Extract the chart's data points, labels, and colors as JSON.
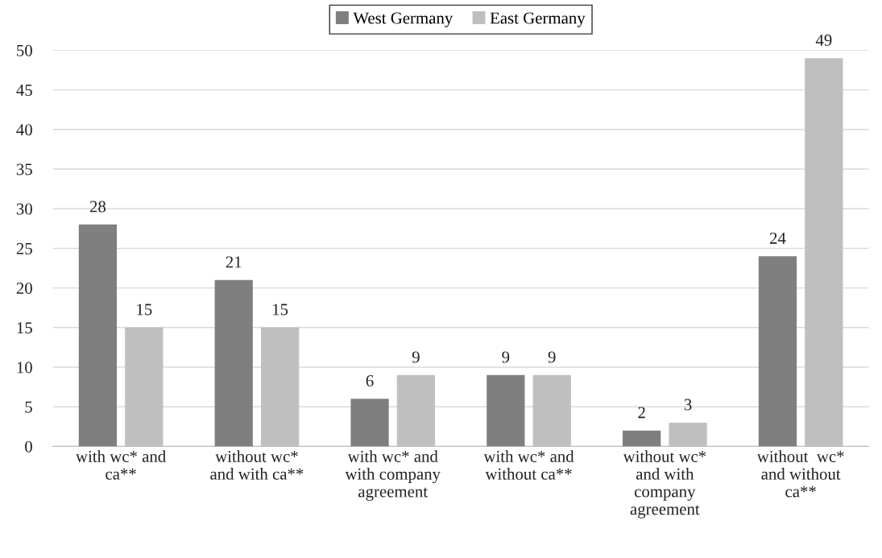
{
  "chart_data": {
    "type": "bar",
    "categories": [
      "with wc* and\nca**",
      "without wc*\nand with ca**",
      "with wc* and\nwith company\nagreement",
      "with wc* and\nwithout ca**",
      "without wc*\nand with\ncompany\nagreement",
      "without  wc*\nand without\nca**"
    ],
    "series": [
      {
        "name": "West Germany",
        "color": "#7f7f7f",
        "values": [
          28,
          21,
          6,
          9,
          2,
          24
        ]
      },
      {
        "name": "East Germany",
        "color": "#bfbfbf",
        "values": [
          15,
          15,
          9,
          9,
          3,
          49
        ]
      }
    ],
    "ylim": [
      0,
      50
    ],
    "yticks": [
      0,
      5,
      10,
      15,
      20,
      25,
      30,
      35,
      40,
      45,
      50
    ],
    "grid": "y",
    "legend": "top",
    "data_labels": true
  }
}
